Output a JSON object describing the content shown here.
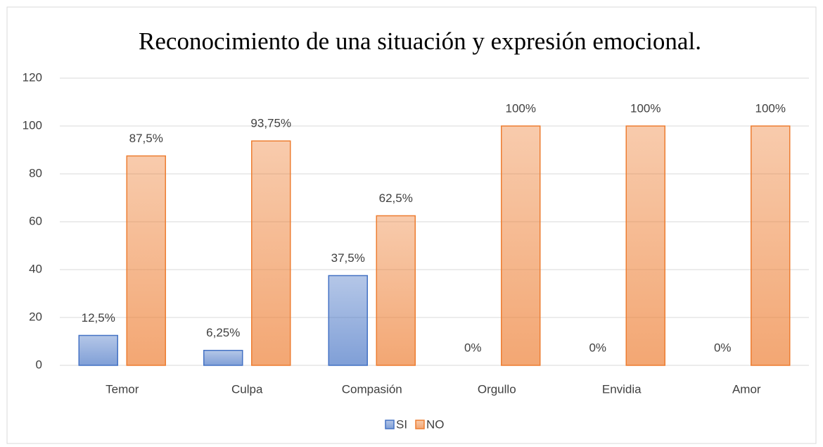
{
  "chart_data": {
    "type": "bar",
    "title": "Reconocimiento de una situación y expresión emocional.",
    "categories": [
      "Temor",
      "Culpa",
      "Compasión",
      "Orgullo",
      "Envidia",
      "Amor"
    ],
    "series": [
      {
        "name": "SI",
        "color": "#4472c4",
        "values": [
          12.5,
          6.25,
          37.5,
          0,
          0,
          0
        ],
        "value_labels": [
          "12,5%",
          "6,25%",
          "37,5%",
          "0%",
          "0%",
          "0%"
        ]
      },
      {
        "name": "NO",
        "color": "#ed7d31",
        "values": [
          87.5,
          93.75,
          62.5,
          100,
          100,
          100
        ],
        "value_labels": [
          "87,5%",
          "93,75%",
          "62,5%",
          "100%",
          "100%",
          "100%"
        ]
      }
    ],
    "ylim": [
      0,
      120
    ],
    "yticks": [
      0,
      20,
      40,
      60,
      80,
      100,
      120
    ],
    "grid": true,
    "legend": "bottom"
  }
}
